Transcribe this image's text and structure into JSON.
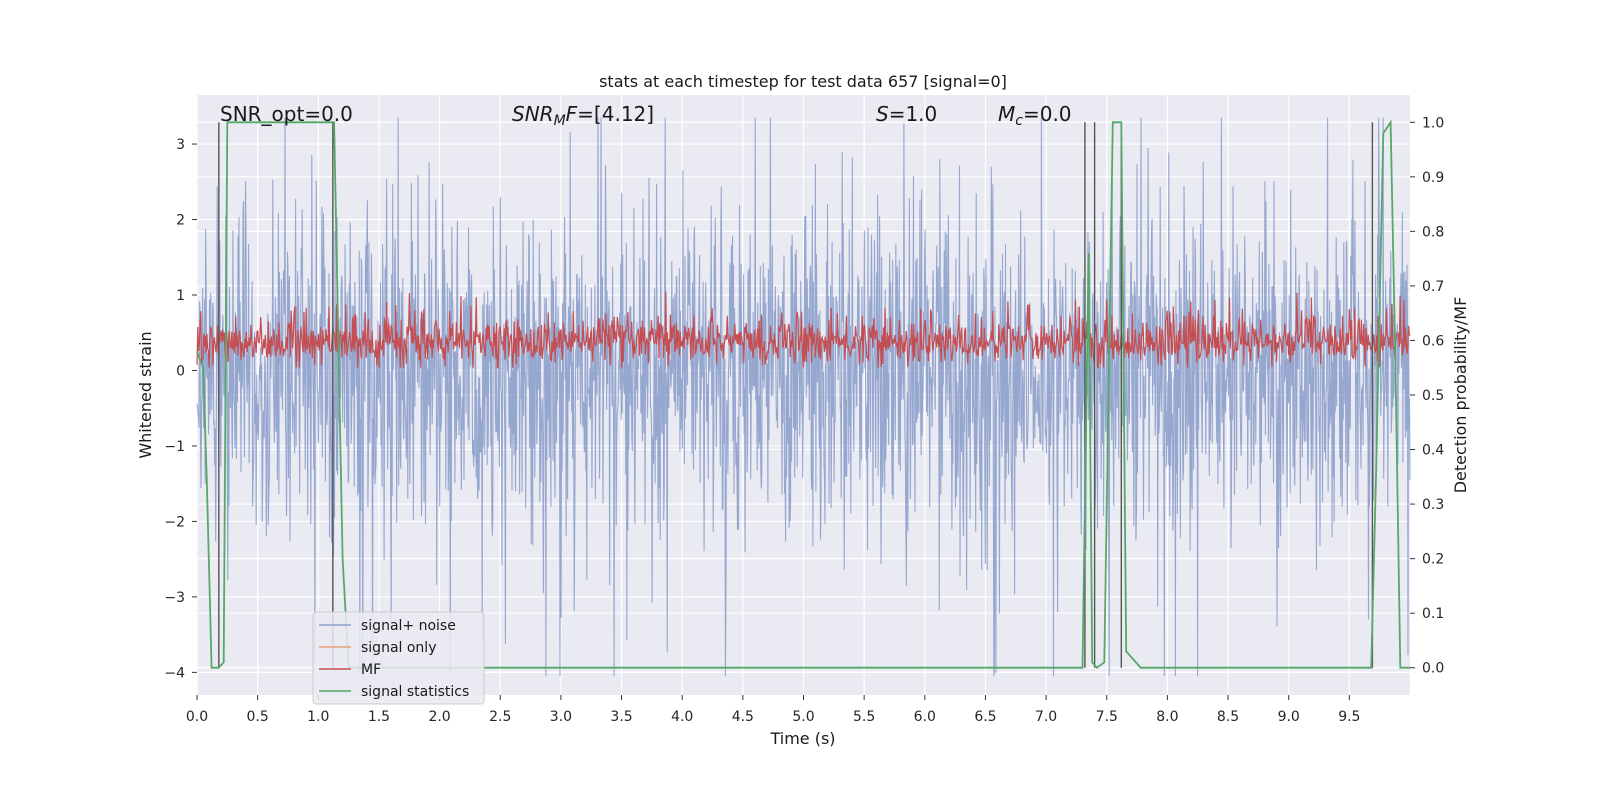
{
  "chart_data": {
    "type": "line",
    "title": "stats at each timestep for test data 657 [signal=0]",
    "xlabel": "Time (s)",
    "ylabel": "Whitened strain",
    "y2label": "Detection probability/MF",
    "xlim": [
      0.0,
      10.0
    ],
    "ylim": [
      -4.3,
      3.65
    ],
    "y2lim": [
      -0.05,
      1.05
    ],
    "x_ticks": [
      0.0,
      0.5,
      1.0,
      1.5,
      2.0,
      2.5,
      3.0,
      3.5,
      4.0,
      4.5,
      5.0,
      5.5,
      6.0,
      6.5,
      7.0,
      7.5,
      8.0,
      8.5,
      9.0,
      9.5
    ],
    "x_tick_labels": [
      "0.0",
      "0.5",
      "1.0",
      "1.5",
      "2.0",
      "2.5",
      "3.0",
      "3.5",
      "4.0",
      "4.5",
      "5.0",
      "5.5",
      "6.0",
      "6.5",
      "7.0",
      "7.5",
      "8.0",
      "8.5",
      "9.0",
      "9.5"
    ],
    "y_ticks": [
      -4,
      -3,
      -2,
      -1,
      0,
      1,
      2,
      3
    ],
    "y_tick_labels": [
      "−4",
      "−3",
      "−2",
      "−1",
      "0",
      "1",
      "2",
      "3"
    ],
    "y2_ticks": [
      0.0,
      0.1,
      0.2,
      0.3,
      0.4,
      0.5,
      0.6,
      0.7,
      0.8,
      0.9,
      1.0
    ],
    "y2_tick_labels": [
      "0.0",
      "0.1",
      "0.2",
      "0.3",
      "0.4",
      "0.5",
      "0.6",
      "0.7",
      "0.8",
      "0.9",
      "1.0"
    ],
    "annotations": {
      "snr_opt": "SNR_opt=0.0",
      "snr_mf_main": "SNR",
      "snr_mf_sub": "M",
      "snr_mf_f": "F",
      "snr_mf_value": "=[4.12]",
      "s_sym": "S",
      "s_value": "=1.0",
      "mc_sym": "M",
      "mc_sub": "c",
      "mc_value": "=0.0"
    },
    "series": [
      {
        "name": "signal+ noise",
        "color": "#8da0cb",
        "description": "whitened strain noise, approx. +/-1.8 band with spikes to +/-3.5 over 0-10 s"
      },
      {
        "name": "signal only",
        "color": "#e8a07a",
        "values": []
      },
      {
        "name": "MF",
        "color": "#c44e52",
        "description": "matched filter output on right axis, mostly 0.55-0.65"
      },
      {
        "name": "signal statistics",
        "color": "#55a868",
        "x": [
          0.0,
          0.05,
          0.08,
          0.12,
          0.18,
          0.22,
          0.25,
          0.3,
          1.1,
          1.13,
          1.2,
          1.25,
          1.3,
          7.3,
          7.35,
          7.38,
          7.42,
          7.48,
          7.55,
          7.62,
          7.66,
          7.7,
          7.78,
          9.68,
          9.72,
          9.78,
          9.84,
          9.88,
          9.92,
          10.0
        ],
        "y": [
          0.58,
          0.55,
          0.35,
          0.0,
          0.0,
          0.01,
          1.0,
          1.0,
          1.0,
          1.0,
          0.2,
          0.0,
          0.0,
          0.0,
          0.76,
          0.01,
          0.0,
          0.01,
          1.0,
          1.0,
          0.03,
          0.02,
          0.0,
          0.0,
          0.35,
          0.98,
          1.0,
          0.56,
          0.0,
          0.0
        ]
      },
      {
        "name": "detections (vertical markers)",
        "color": "#555555",
        "x": [
          0.18,
          1.12,
          7.32,
          7.4,
          7.62,
          9.69
        ]
      }
    ],
    "legend_position": "lower-left",
    "legend": [
      "signal+ noise",
      "signal only",
      "MF",
      "signal statistics"
    ]
  }
}
